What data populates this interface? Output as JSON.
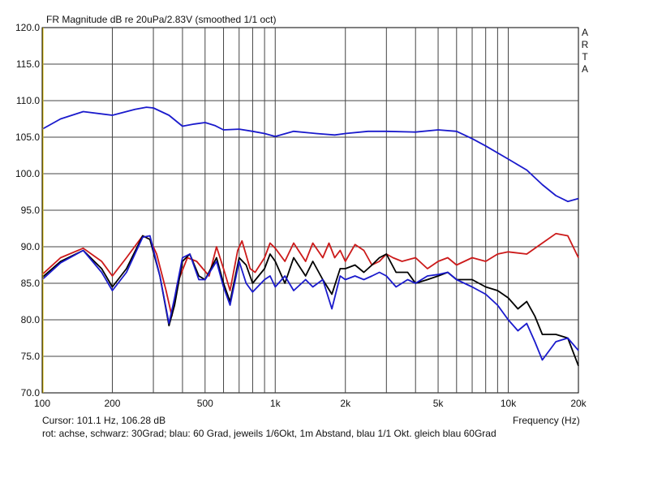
{
  "chart_data": {
    "type": "line",
    "title": "FR Magnitude dB re 20uPa/2.83V (smoothed 1/1 oct)",
    "watermark": "ARTA",
    "xlabel": "Frequency (Hz)",
    "ylabel": "",
    "x_scale": "log",
    "xlim": [
      100,
      20000
    ],
    "ylim": [
      70,
      120
    ],
    "grid": true,
    "x_tick_values": [
      100,
      200,
      500,
      1000,
      2000,
      5000,
      10000,
      20000
    ],
    "x_tick_labels": [
      "100",
      "200",
      "500",
      "1k",
      "2k",
      "5k",
      "10k",
      "20k"
    ],
    "y_tick_values": [
      70,
      75,
      80,
      85,
      90,
      95,
      100,
      105,
      110,
      115,
      120
    ],
    "y_tick_labels": [
      "70.0",
      "75.0",
      "80.0",
      "85.0",
      "90.0",
      "95.0",
      "100.0",
      "105.0",
      "110.0",
      "115.0",
      "120.0"
    ],
    "series": [
      {
        "color": "#1a1acc",
        "points": [
          [
            100,
            106.1
          ],
          [
            120,
            107.5
          ],
          [
            150,
            108.5
          ],
          [
            200,
            108.0
          ],
          [
            250,
            108.8
          ],
          [
            280,
            109.1
          ],
          [
            300,
            109.0
          ],
          [
            350,
            108.0
          ],
          [
            400,
            106.5
          ],
          [
            450,
            106.8
          ],
          [
            500,
            107.0
          ],
          [
            550,
            106.6
          ],
          [
            600,
            106.0
          ],
          [
            700,
            106.1
          ],
          [
            800,
            105.8
          ],
          [
            900,
            105.5
          ],
          [
            1000,
            105.1
          ],
          [
            1200,
            105.8
          ],
          [
            1500,
            105.5
          ],
          [
            1800,
            105.3
          ],
          [
            2000,
            105.5
          ],
          [
            2500,
            105.8
          ],
          [
            3000,
            105.8
          ],
          [
            4000,
            105.7
          ],
          [
            5000,
            106.0
          ],
          [
            6000,
            105.8
          ],
          [
            7000,
            104.8
          ],
          [
            8000,
            103.8
          ],
          [
            10000,
            102.0
          ],
          [
            12000,
            100.5
          ],
          [
            14000,
            98.5
          ],
          [
            16000,
            97.0
          ],
          [
            18000,
            96.2
          ],
          [
            20000,
            96.6
          ]
        ]
      },
      {
        "color": "#cc1a1a",
        "points": [
          [
            100,
            86.2
          ],
          [
            120,
            88.5
          ],
          [
            150,
            89.8
          ],
          [
            180,
            88.0
          ],
          [
            200,
            86.0
          ],
          [
            230,
            88.5
          ],
          [
            270,
            91.5
          ],
          [
            290,
            91.0
          ],
          [
            310,
            89.0
          ],
          [
            340,
            84.0
          ],
          [
            360,
            80.5
          ],
          [
            380,
            85.0
          ],
          [
            420,
            88.5
          ],
          [
            460,
            88.0
          ],
          [
            520,
            86.0
          ],
          [
            560,
            90.0
          ],
          [
            600,
            87.0
          ],
          [
            640,
            84.0
          ],
          [
            690,
            89.5
          ],
          [
            720,
            90.8
          ],
          [
            780,
            87.0
          ],
          [
            820,
            86.5
          ],
          [
            900,
            88.5
          ],
          [
            950,
            90.5
          ],
          [
            1000,
            89.8
          ],
          [
            1100,
            88.0
          ],
          [
            1200,
            90.5
          ],
          [
            1350,
            88.0
          ],
          [
            1450,
            90.5
          ],
          [
            1600,
            88.5
          ],
          [
            1700,
            90.5
          ],
          [
            1800,
            88.5
          ],
          [
            1900,
            89.5
          ],
          [
            2000,
            88.0
          ],
          [
            2200,
            90.3
          ],
          [
            2400,
            89.5
          ],
          [
            2600,
            87.5
          ],
          [
            2800,
            88.0
          ],
          [
            3000,
            89.0
          ],
          [
            3200,
            88.5
          ],
          [
            3500,
            88.0
          ],
          [
            4000,
            88.5
          ],
          [
            4500,
            87.0
          ],
          [
            5000,
            88.0
          ],
          [
            5500,
            88.5
          ],
          [
            6000,
            87.5
          ],
          [
            7000,
            88.5
          ],
          [
            8000,
            88.0
          ],
          [
            9000,
            89.0
          ],
          [
            10000,
            89.3
          ],
          [
            12000,
            89.0
          ],
          [
            14000,
            90.5
          ],
          [
            16000,
            91.8
          ],
          [
            18000,
            91.5
          ],
          [
            20000,
            88.5
          ]
        ]
      },
      {
        "color": "#000000",
        "points": [
          [
            100,
            85.8
          ],
          [
            120,
            88.0
          ],
          [
            150,
            89.5
          ],
          [
            180,
            87.0
          ],
          [
            200,
            84.5
          ],
          [
            230,
            87.0
          ],
          [
            270,
            91.5
          ],
          [
            290,
            91.0
          ],
          [
            320,
            86.0
          ],
          [
            350,
            79.2
          ],
          [
            370,
            82.0
          ],
          [
            400,
            88.0
          ],
          [
            430,
            89.0
          ],
          [
            470,
            86.0
          ],
          [
            500,
            85.5
          ],
          [
            560,
            88.5
          ],
          [
            600,
            85.0
          ],
          [
            640,
            82.5
          ],
          [
            700,
            88.5
          ],
          [
            750,
            87.5
          ],
          [
            800,
            85.0
          ],
          [
            900,
            87.0
          ],
          [
            950,
            89.0
          ],
          [
            1000,
            88.0
          ],
          [
            1100,
            85.0
          ],
          [
            1200,
            88.5
          ],
          [
            1350,
            86.0
          ],
          [
            1450,
            88.0
          ],
          [
            1600,
            85.5
          ],
          [
            1750,
            83.5
          ],
          [
            1900,
            87.0
          ],
          [
            2000,
            87.0
          ],
          [
            2200,
            87.5
          ],
          [
            2400,
            86.5
          ],
          [
            2600,
            87.5
          ],
          [
            2800,
            88.5
          ],
          [
            3000,
            89.0
          ],
          [
            3300,
            86.5
          ],
          [
            3700,
            86.5
          ],
          [
            4000,
            85.0
          ],
          [
            4500,
            85.5
          ],
          [
            5000,
            86.0
          ],
          [
            5500,
            86.5
          ],
          [
            6000,
            85.5
          ],
          [
            7000,
            85.5
          ],
          [
            8000,
            84.5
          ],
          [
            9000,
            84.0
          ],
          [
            10000,
            83.0
          ],
          [
            11000,
            81.5
          ],
          [
            12000,
            82.5
          ],
          [
            13000,
            80.5
          ],
          [
            14000,
            78.0
          ],
          [
            16000,
            78.0
          ],
          [
            18000,
            77.5
          ],
          [
            20000,
            73.7
          ]
        ]
      },
      {
        "color": "#1a1acc",
        "points": [
          [
            100,
            85.5
          ],
          [
            120,
            87.8
          ],
          [
            150,
            89.5
          ],
          [
            180,
            86.5
          ],
          [
            200,
            84.0
          ],
          [
            230,
            86.5
          ],
          [
            270,
            91.3
          ],
          [
            290,
            91.5
          ],
          [
            320,
            86.0
          ],
          [
            350,
            79.5
          ],
          [
            370,
            83.0
          ],
          [
            400,
            88.5
          ],
          [
            430,
            89.0
          ],
          [
            470,
            85.5
          ],
          [
            500,
            85.5
          ],
          [
            560,
            88.0
          ],
          [
            600,
            84.5
          ],
          [
            640,
            82.0
          ],
          [
            700,
            88.0
          ],
          [
            750,
            85.0
          ],
          [
            800,
            83.8
          ],
          [
            900,
            85.5
          ],
          [
            950,
            86.0
          ],
          [
            1000,
            84.5
          ],
          [
            1100,
            86.0
          ],
          [
            1200,
            84.0
          ],
          [
            1350,
            85.5
          ],
          [
            1450,
            84.5
          ],
          [
            1600,
            85.5
          ],
          [
            1750,
            81.5
          ],
          [
            1900,
            86.0
          ],
          [
            2000,
            85.5
          ],
          [
            2200,
            86.0
          ],
          [
            2400,
            85.5
          ],
          [
            2600,
            86.0
          ],
          [
            2800,
            86.5
          ],
          [
            3000,
            86.0
          ],
          [
            3300,
            84.5
          ],
          [
            3700,
            85.5
          ],
          [
            4000,
            85.0
          ],
          [
            4500,
            86.0
          ],
          [
            5000,
            86.2
          ],
          [
            5500,
            86.5
          ],
          [
            6000,
            85.5
          ],
          [
            7000,
            84.5
          ],
          [
            8000,
            83.5
          ],
          [
            9000,
            82.0
          ],
          [
            10000,
            80.0
          ],
          [
            11000,
            78.5
          ],
          [
            12000,
            79.5
          ],
          [
            13000,
            77.0
          ],
          [
            14000,
            74.5
          ],
          [
            16000,
            77.0
          ],
          [
            18000,
            77.5
          ],
          [
            20000,
            75.8
          ]
        ]
      }
    ]
  },
  "cursor_text": "Cursor: 101.1 Hz, 106.28 dB",
  "caption": "rot: achse, schwarz: 30Grad; blau: 60 Grad, jeweils 1/6Okt, 1m Abstand, blau 1/1 Okt. gleich blau 60Grad",
  "arta_letters": [
    "A",
    "R",
    "T",
    "A"
  ]
}
